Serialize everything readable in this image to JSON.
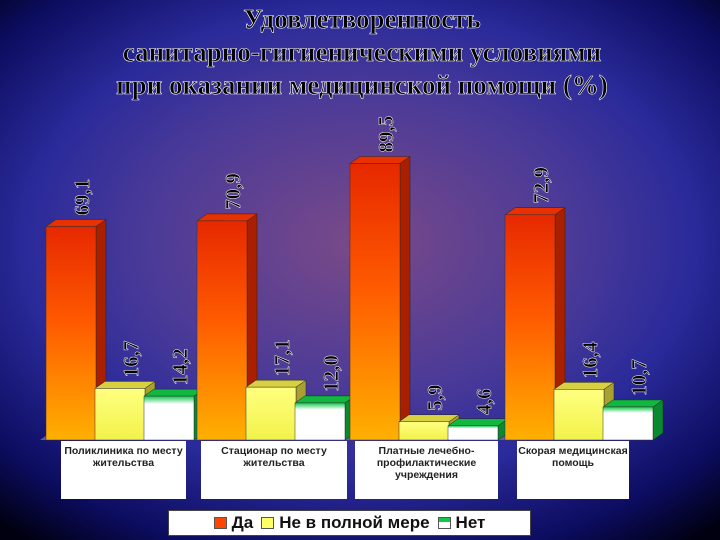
{
  "title": "Удовлетворенность санитарно-гигиеническими условиями при оказании медицинской помощи (%)",
  "chart_data": {
    "type": "bar",
    "title": "Удовлетворенность санитарно-гигиеническими условиями при оказании медицинской помощи (%)",
    "categories": [
      "Поликлиника по месту жительства",
      "Стационар по месту жительства",
      "Платные лечебно-профилактические учреждения",
      "Скорая медицинская помощь"
    ],
    "series": [
      {
        "name": "Да",
        "values": [
          69.1,
          70.9,
          89.5,
          72.9
        ],
        "labels": [
          "69,1",
          "70,9",
          "89,5",
          "72,9"
        ],
        "color": "#ff4500"
      },
      {
        "name": "Не в полной мере",
        "values": [
          16.7,
          17.1,
          5.9,
          16.4
        ],
        "labels": [
          "16,7",
          "17,1",
          "5,9",
          "16,4"
        ],
        "color": "#ffff66"
      },
      {
        "name": "Нет",
        "values": [
          14.2,
          12.0,
          4.6,
          10.7
        ],
        "labels": [
          "14,2",
          "12,0",
          "4,6",
          "10,7"
        ],
        "color": "#00d94a"
      }
    ],
    "ylim": [
      0,
      100
    ],
    "grid": false,
    "legend": "bottom",
    "three_d": true
  }
}
